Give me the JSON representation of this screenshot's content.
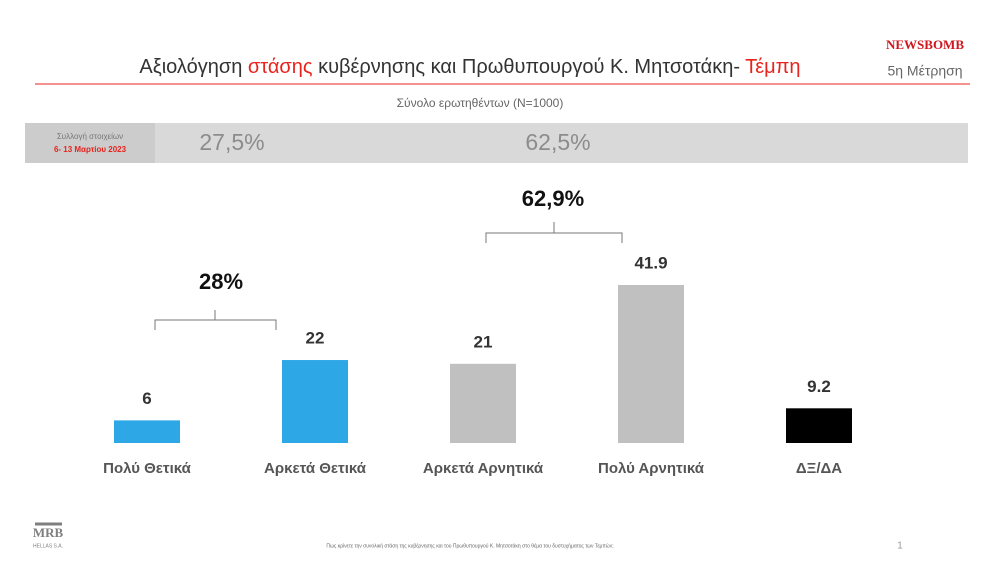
{
  "chart_data": {
    "type": "bar",
    "title_parts": [
      "Αξιολόγηση ",
      "στάσης",
      " κυβέρνησης και Πρωθυπουργού Κ. Μητσοτάκη- ",
      "Τέμπη"
    ],
    "subtitle": "Σύνολο ερωτηθέντων (N=1000)",
    "brand": "NEWSBOMB",
    "wave": "5η Μέτρηση",
    "previous": {
      "label": "Συλλογή στοιχείων",
      "date": "6- 13 Μαρτίου 2023",
      "values": [
        "27,5%",
        "62,5%"
      ]
    },
    "groups": [
      "28%",
      "62,9%"
    ],
    "categories": [
      "Πολύ Θετικά",
      "Αρκετά Θετικά",
      "Αρκετά Αρνητικά",
      "Πολύ Αρνητικά",
      "ΔΞ/ΔΑ"
    ],
    "values": [
      6,
      22,
      21,
      41.9,
      9.2
    ],
    "colors": [
      "#2da7e6",
      "#2da7e6",
      "#c0c0c0",
      "#c0c0c0",
      "#000000"
    ],
    "footnote": "Πως κρίνετε την συνολική στάση της κυβέρνησης και του Πρωθυπουργού Κ. Μητσοτάκη στο θέμα του δυστυχήματος των Τεμπών;",
    "page": "1",
    "company": "MRB",
    "company_sub": "HELLAS S.A."
  }
}
